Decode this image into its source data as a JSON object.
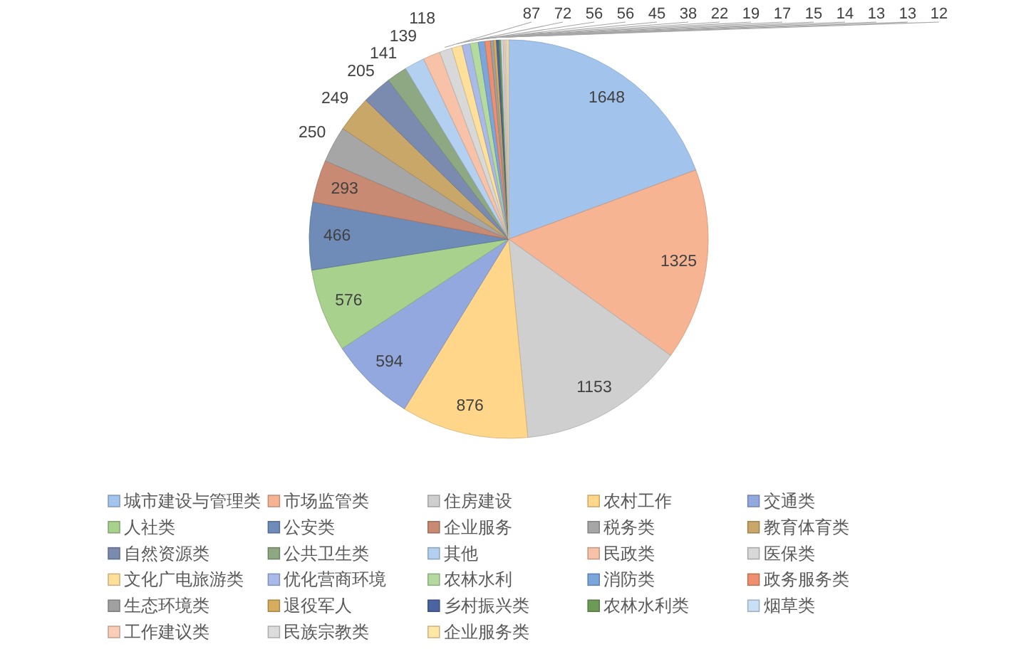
{
  "chart_data": {
    "type": "pie",
    "categories": [
      "城市建设与管理类",
      "市场监管类",
      "住房建设",
      "农村工作",
      "交通类",
      "人社类",
      "公安类",
      "企业服务",
      "税务类",
      "教育体育类",
      "自然资源类",
      "公共卫生类",
      "其他",
      "民政类",
      "医保类",
      "文化广电旅游类",
      "优化营商环境",
      "农林水利",
      "消防类",
      "政务服务类",
      "生态环境类",
      "退役军人",
      "乡村振兴类",
      "农林水利类",
      "烟草类",
      "工作建议类",
      "民族宗教类",
      "企业服务类"
    ],
    "values": [
      1648,
      1325,
      1153,
      876,
      594,
      576,
      466,
      293,
      250,
      249,
      205,
      141,
      139,
      118,
      87,
      72,
      56,
      56,
      45,
      38,
      22,
      19,
      17,
      15,
      14,
      13,
      13,
      12
    ],
    "colors": [
      "#a2c4ec",
      "#f6b493",
      "#cfcfcf",
      "#ffd68a",
      "#93a8de",
      "#a8d18e",
      "#6f8cb8",
      "#c88a73",
      "#a6a6a6",
      "#c9a768",
      "#7b8bb0",
      "#8da882",
      "#b3d0f0",
      "#f7c2a8",
      "#d8d8d8",
      "#ffe09a",
      "#a9b9e8",
      "#b5daa0",
      "#7ba6dc",
      "#ee9070",
      "#a0a0a0",
      "#d4ae5e",
      "#4b63a0",
      "#6e9a58",
      "#c9dff5",
      "#f9cdb6",
      "#dcdcdc",
      "#ffe7a8"
    ],
    "data_labels": true,
    "legend": "bottom"
  }
}
